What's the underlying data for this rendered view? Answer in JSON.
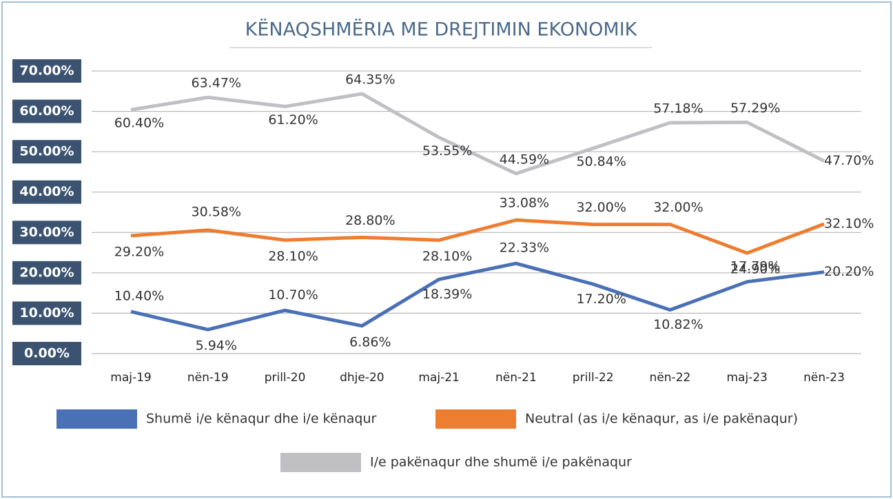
{
  "chart_data": {
    "type": "line",
    "title": "KËNAQSHMËRIA ME DREJTIMIN EKONOMIK",
    "categories": [
      "maj-19",
      "nën-19",
      "prill-20",
      "dhje-20",
      "maj-21",
      "nën-21",
      "prill-22",
      "nën-22",
      "maj-23",
      "nën-23"
    ],
    "series": [
      {
        "name": "Shumë i/e kënaqur dhe i/e kënaqur",
        "color": "#4a70b5",
        "values": [
          10.4,
          5.94,
          10.7,
          6.86,
          18.39,
          22.33,
          17.2,
          10.82,
          17.79,
          20.2
        ],
        "value_labels": [
          "10.40%",
          "5.94%",
          "10.70%",
          "6.86%",
          "18.39%",
          "22.33%",
          "17.20%",
          "10.82%",
          "17.79%",
          "20.20%"
        ]
      },
      {
        "name": "Neutral (as i/e kënaqur, as i/e pakënaqur)",
        "color": "#ed7d31",
        "values": [
          29.2,
          30.58,
          28.1,
          28.8,
          28.1,
          33.08,
          32.0,
          32.0,
          24.9,
          32.1
        ],
        "value_labels": [
          "29.20%",
          "30.58%",
          "28.10%",
          "28.80%",
          "28.10%",
          "33.08%",
          "32.00%",
          "32.00%",
          "24.90%",
          "32.10%"
        ]
      },
      {
        "name": "I/e pakënaqur dhe shumë i/e pakënaqur",
        "color": "#bfbfc4",
        "values": [
          60.4,
          63.47,
          61.2,
          64.35,
          53.55,
          44.59,
          50.84,
          57.18,
          57.29,
          47.7
        ],
        "value_labels": [
          "60.40%",
          "63.47%",
          "61.20%",
          "64.35%",
          "53.55%",
          "44.59%",
          "50.84%",
          "57.18%",
          "57.29%",
          "47.70%"
        ]
      }
    ],
    "ylim": [
      0,
      70
    ],
    "yticks": [
      {
        "value": 0,
        "label": "0.00%"
      },
      {
        "value": 10,
        "label": "10.00%"
      },
      {
        "value": 20,
        "label": "20.00%"
      },
      {
        "value": 30,
        "label": "30.00%"
      },
      {
        "value": 40,
        "label": "40.00%"
      },
      {
        "value": 50,
        "label": "50.00%"
      },
      {
        "value": 60,
        "label": "60.00%"
      },
      {
        "value": 70,
        "label": "70.00%"
      }
    ],
    "grid": true
  }
}
